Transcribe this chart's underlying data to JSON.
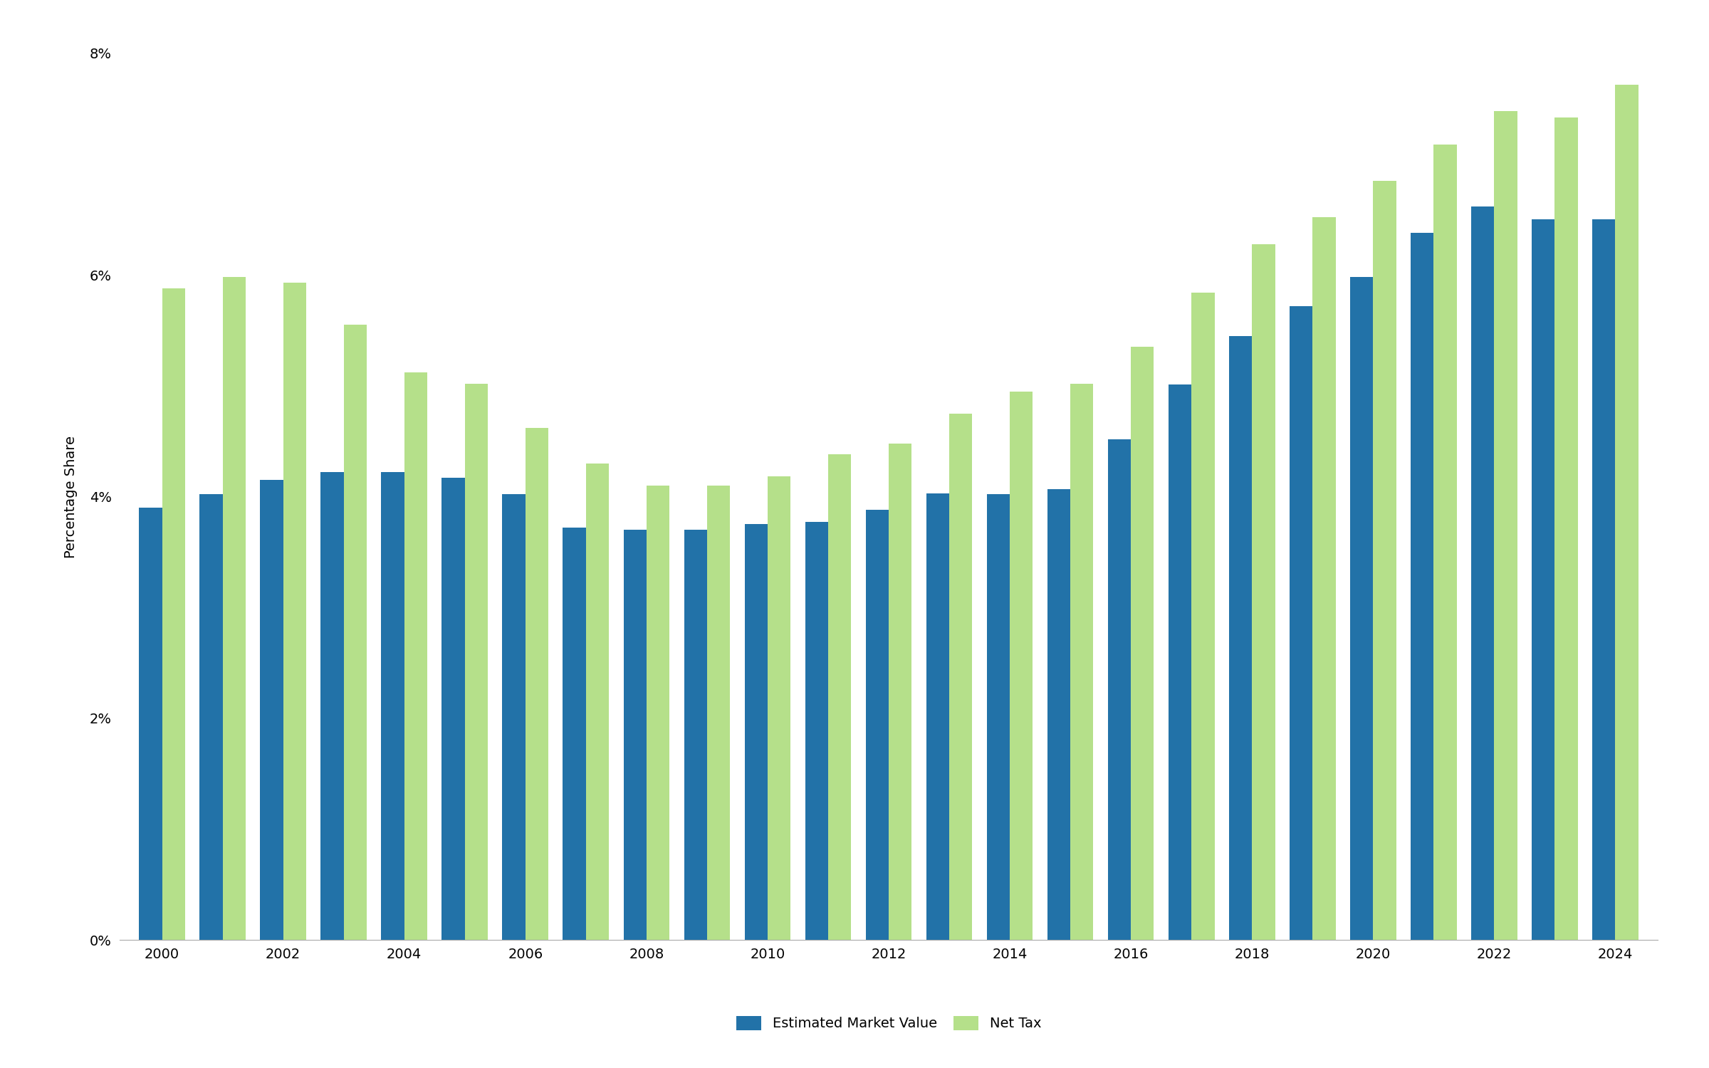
{
  "years": [
    2000,
    2001,
    2002,
    2003,
    2004,
    2005,
    2006,
    2007,
    2008,
    2009,
    2010,
    2011,
    2012,
    2013,
    2014,
    2015,
    2016,
    2017,
    2018,
    2019,
    2020,
    2021,
    2022,
    2023,
    2024
  ],
  "emv": [
    0.039,
    0.0402,
    0.0415,
    0.0422,
    0.0422,
    0.0417,
    0.0402,
    0.0372,
    0.037,
    0.037,
    0.0375,
    0.0377,
    0.0388,
    0.0403,
    0.0402,
    0.0407,
    0.0452,
    0.0501,
    0.0545,
    0.0572,
    0.0598,
    0.0638,
    0.0662,
    0.065,
    0.065
  ],
  "net_tax": [
    0.0588,
    0.0598,
    0.0593,
    0.0555,
    0.0512,
    0.0502,
    0.0462,
    0.043,
    0.041,
    0.041,
    0.0418,
    0.0438,
    0.0448,
    0.0475,
    0.0495,
    0.0502,
    0.0535,
    0.0584,
    0.0628,
    0.0652,
    0.0685,
    0.0718,
    0.0748,
    0.0742,
    0.0772
  ],
  "emv_color": "#2272a8",
  "net_tax_color": "#b5e08a",
  "ylabel": "Percentage Share",
  "ylim_max": 0.08,
  "ytick_vals": [
    0.0,
    0.02,
    0.04,
    0.06,
    0.08
  ],
  "ytick_labels": [
    "0%",
    "2%",
    "4%",
    "6%",
    "8%"
  ],
  "legend_emv": "Estimated Market Value",
  "legend_net_tax": "Net Tax",
  "background_color": "#ffffff",
  "bar_width": 0.38,
  "tick_fontsize": 14,
  "label_fontsize": 14,
  "legend_fontsize": 14
}
